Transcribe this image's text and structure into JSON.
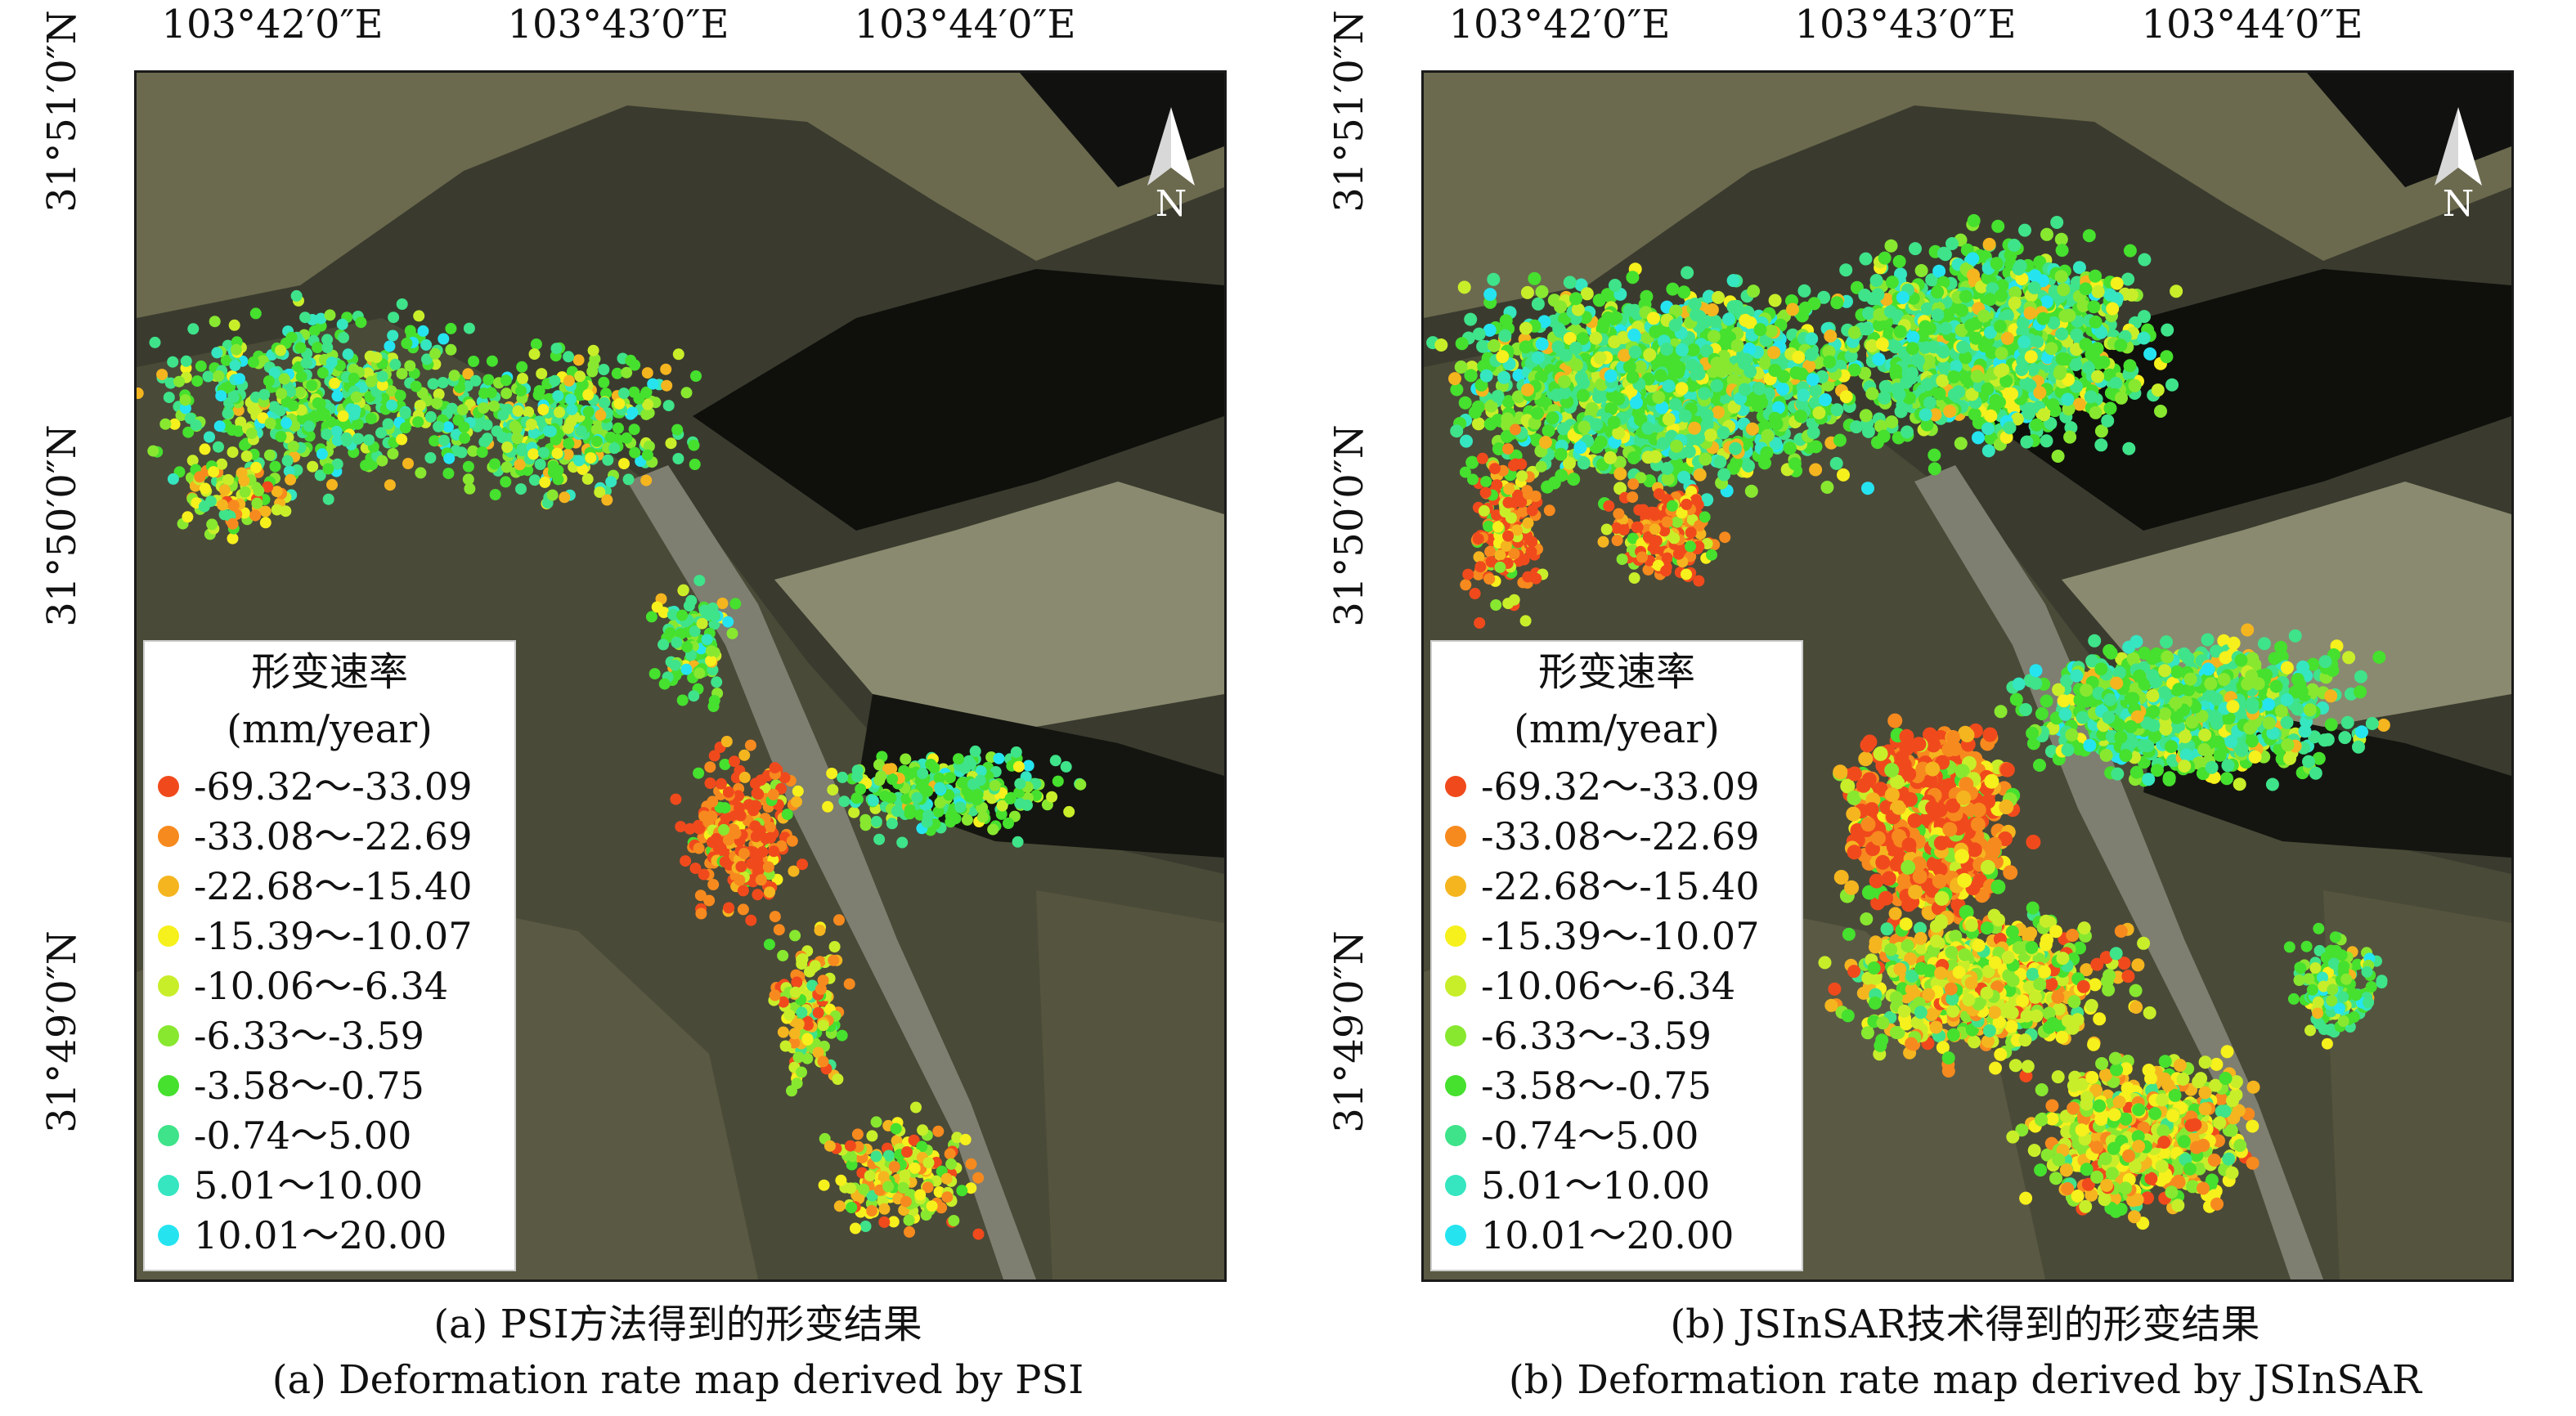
{
  "panels": [
    {
      "id": "a",
      "caption_zh": "(a) PSI方法得到的形变结果",
      "caption_en": "(a) Deformation rate map derived by PSI"
    },
    {
      "id": "b",
      "caption_zh": "(b) JSInSAR技术得到的形变结果",
      "caption_en": "(b) Deformation rate map derived by JSInSAR"
    }
  ],
  "longitude_labels": [
    "103°42′0″E",
    "103°43′0″E",
    "103°44′0″E"
  ],
  "latitude_labels": [
    "31°51′0″N",
    "31°50′0″N",
    "31°49′0″N"
  ],
  "north_arrow": "N",
  "legend": {
    "title_line1": "形变速率",
    "title_line2": "(mm/year)",
    "items": [
      {
        "label": "-69.32～-33.09",
        "color": "#f04a1c"
      },
      {
        "label": "-33.08～-22.69",
        "color": "#f78a1e"
      },
      {
        "label": "-22.68～-15.40",
        "color": "#f5b51f"
      },
      {
        "label": "-15.39～-10.07",
        "color": "#f6f01c"
      },
      {
        "label": "-10.06～-6.34",
        "color": "#c8ee2a"
      },
      {
        "label": "-6.33～-3.59",
        "color": "#88e830"
      },
      {
        "label": "-3.58～-0.75",
        "color": "#46e02e"
      },
      {
        "label": "-0.74～5.00",
        "color": "#3fe38a"
      },
      {
        "label": "5.01～10.00",
        "color": "#35e6c0"
      },
      {
        "label": "10.01～20.00",
        "color": "#25e4f0"
      }
    ]
  }
}
